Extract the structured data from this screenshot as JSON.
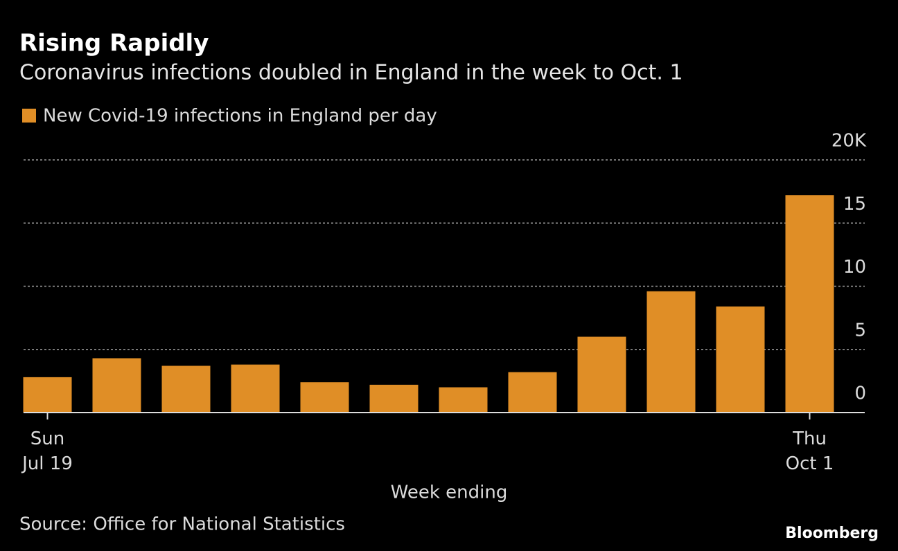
{
  "chart_data": {
    "type": "bar",
    "title": "Rising Rapidly",
    "subtitle": "Coronavirus infections doubled in England in the week to Oct. 1",
    "x_label": "Week ending",
    "source": "Source: Office for National Statistics",
    "brand": "Bloomberg",
    "categories": [
      "Sun\nJul 19",
      null,
      null,
      null,
      null,
      null,
      null,
      null,
      null,
      null,
      null,
      "Thu\nOct 1"
    ],
    "series": [
      {
        "name": "New Covid-19 infections in England per day",
        "color": "#e08e26",
        "values": [
          2.8,
          4.3,
          3.7,
          3.8,
          2.4,
          2.2,
          2.0,
          3.2,
          6.0,
          9.6,
          8.4,
          17.2
        ]
      }
    ],
    "ylim": [
      0,
      20
    ],
    "yticks": [
      0,
      5,
      10,
      15,
      {
        "value": 20,
        "label": "20K"
      }
    ],
    "grid": true
  }
}
